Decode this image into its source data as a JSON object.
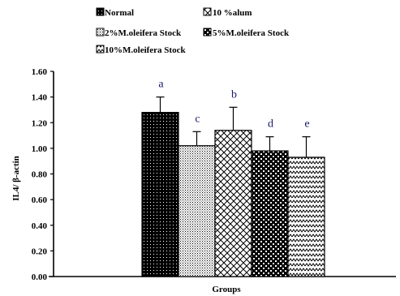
{
  "chart_data": {
    "type": "bar",
    "title": "",
    "xlabel": "Groups",
    "ylabel": "IL4/ β-actin",
    "ylim": [
      0,
      1.6
    ],
    "yticks": [
      "0.00",
      "0.20",
      "0.40",
      "0.60",
      "0.80",
      "1.00",
      "1.20",
      "1.40",
      "1.60"
    ],
    "grid": false,
    "legend_position": "top",
    "series": [
      {
        "name": "Normal",
        "value": 1.28,
        "error": 0.12,
        "label": "a",
        "pattern": "black-dots"
      },
      {
        "name": "2%M.oleifera Stock",
        "value": 1.02,
        "error": 0.11,
        "label": "c",
        "pattern": "fine-dots"
      },
      {
        "name": "10 %alum",
        "value": 1.14,
        "error": 0.18,
        "label": "b",
        "pattern": "diamond-cross"
      },
      {
        "name": "5%M.oleifera Stock",
        "value": 0.98,
        "error": 0.11,
        "label": "d",
        "pattern": "black-checker"
      },
      {
        "name": "10%M.oleifera Stock",
        "value": 0.93,
        "error": 0.16,
        "label": "e",
        "pattern": "zigzag"
      }
    ]
  }
}
